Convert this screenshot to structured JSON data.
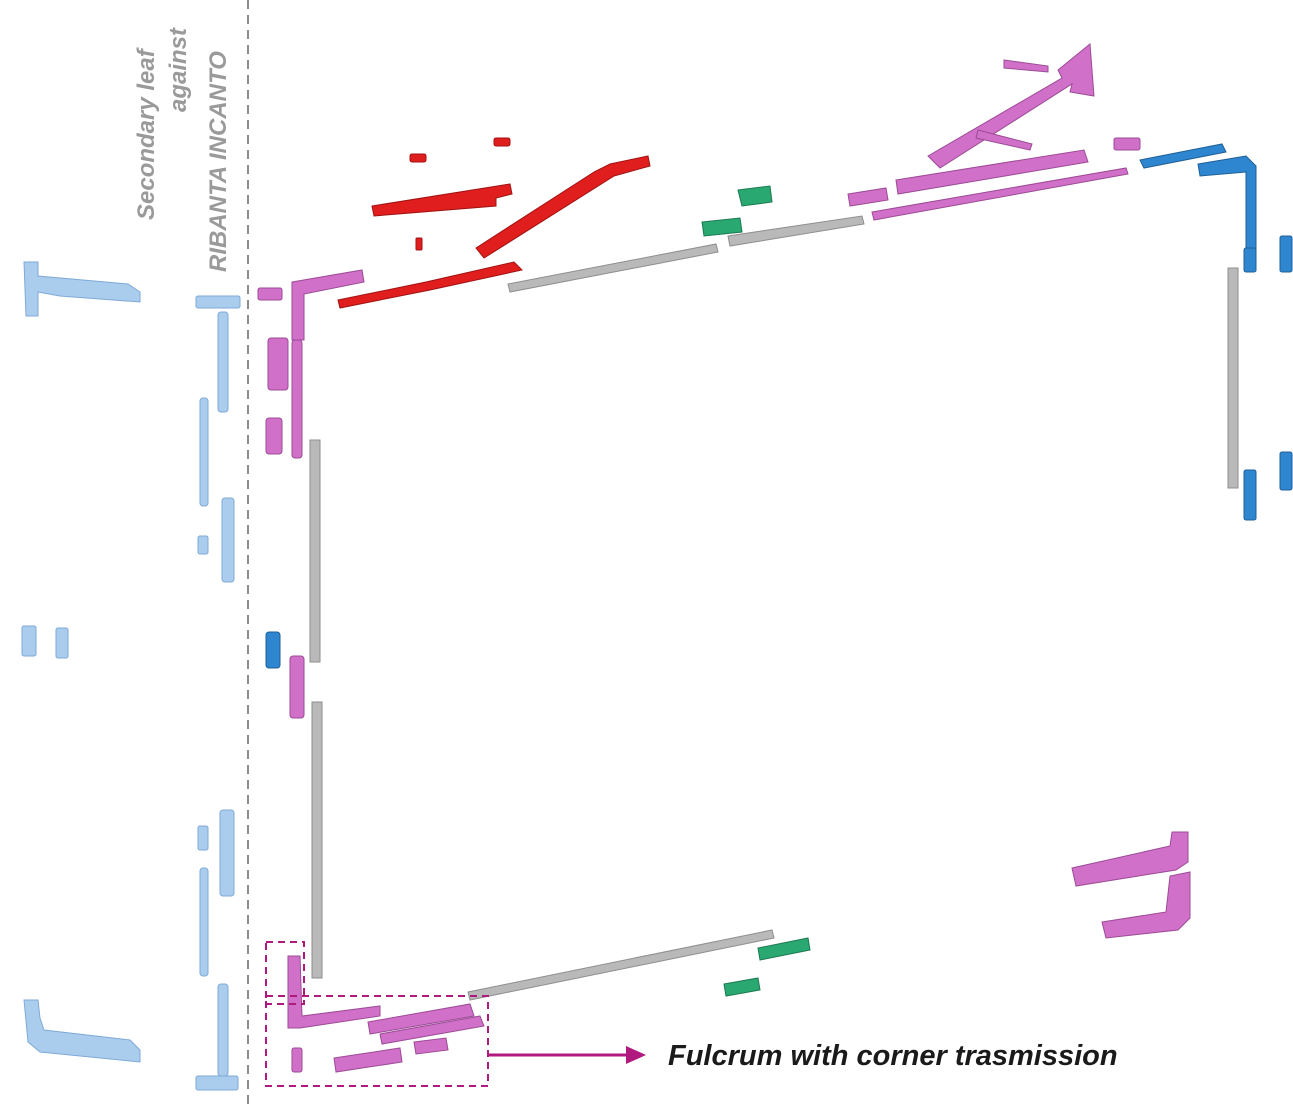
{
  "labels": {
    "secondary_leaf_line1": "Secondary leaf",
    "secondary_leaf_line2": "against",
    "secondary_leaf_line3": "RIBANTA INCANTO",
    "callout": "Fulcrum with corner trasmission"
  },
  "colors": {
    "magenta": "#d070c8",
    "red": "#e01e1e",
    "green": "#2aa872",
    "blue": "#2d86cf",
    "light_blue": "#aacdee",
    "grey_bar": "#b4b4b4",
    "dashed_line": "#8c8c8c",
    "callout_accent": "#b0197e"
  }
}
